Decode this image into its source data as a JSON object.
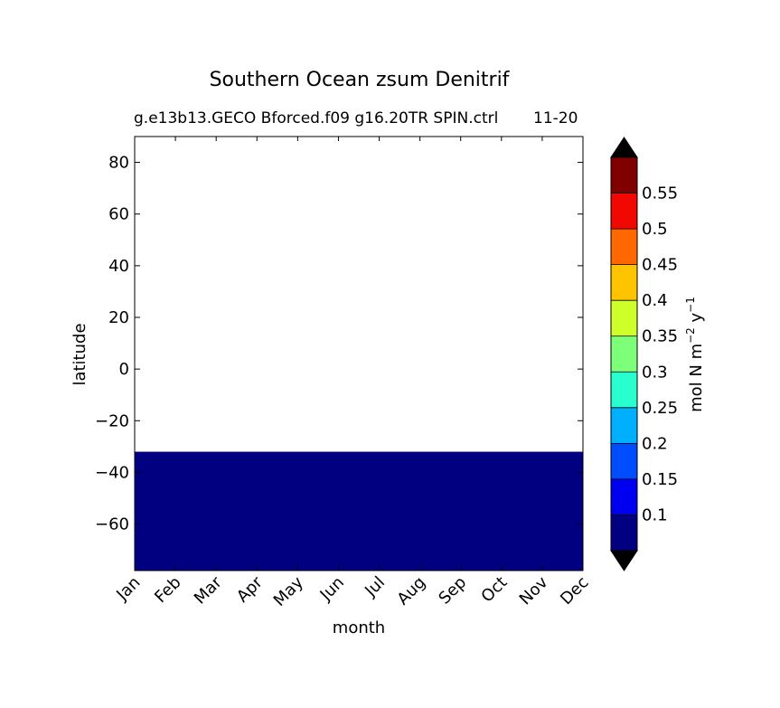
{
  "chart_data": {
    "type": "heatmap",
    "title": "Southern Ocean zsum Denitrif",
    "subtitle_left": "g.e13b13.GECO Bforced.f09 g16.20TR SPIN.ctrl",
    "subtitle_right": "11-20",
    "xlabel": "month",
    "ylabel": "latitude",
    "x_categories": [
      "Jan",
      "Feb",
      "Mar",
      "Apr",
      "May",
      "Jun",
      "Jul",
      "Aug",
      "Sep",
      "Oct",
      "Nov",
      "Dec"
    ],
    "y_ticks": [
      80,
      60,
      40,
      20,
      0,
      -20,
      -40,
      -60
    ],
    "y_tick_labels": [
      "80",
      "60",
      "40",
      "20",
      "0",
      "−20",
      "−40",
      "−60"
    ],
    "ylim": [
      -78,
      90
    ],
    "filled_region": {
      "lat_min": -78,
      "lat_max": -32,
      "value_bin": "below 0.1",
      "color": "#000080"
    },
    "colorbar": {
      "label": "mol N m⁻² y⁻¹",
      "label_parts": {
        "base": "mol N m",
        "exp1": "−2",
        "mid": " y",
        "exp2": "−1"
      },
      "levels": [
        "0.1",
        "0.15",
        "0.2",
        "0.25",
        "0.3",
        "0.35",
        "0.4",
        "0.45",
        "0.5",
        "0.55"
      ],
      "colors": [
        "#000080",
        "#0000f1",
        "#004cff",
        "#00b0ff",
        "#29ffce",
        "#7dff7a",
        "#ceff29",
        "#ffc400",
        "#ff6800",
        "#f10800",
        "#800000"
      ],
      "extend_low_color": "#000000",
      "extend_high_color": "#000000"
    }
  }
}
